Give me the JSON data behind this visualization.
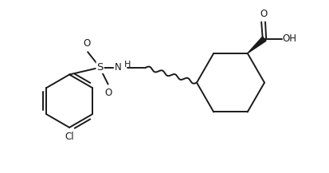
{
  "background": "#ffffff",
  "line_color": "#1a1a1a",
  "line_width": 1.4,
  "font_size": 8.5,
  "figsize": [
    4.13,
    2.17
  ],
  "dpi": 100,
  "xlim": [
    0,
    10
  ],
  "ylim": [
    0,
    5
  ]
}
